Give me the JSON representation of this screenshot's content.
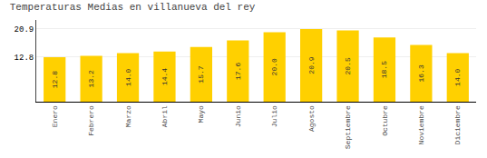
{
  "chart_data": {
    "type": "bar",
    "title": "Temperaturas Medias en villanueva del rey",
    "categories": [
      "Enero",
      "Febrero",
      "Marzo",
      "Abril",
      "Mayo",
      "Junio",
      "Julio",
      "Agosto",
      "Septiembre",
      "Octubre",
      "Noviembre",
      "Diciembre"
    ],
    "values": [
      12.8,
      13.2,
      14.0,
      14.4,
      15.7,
      17.6,
      20.0,
      20.9,
      20.5,
      18.5,
      16.3,
      14.0
    ],
    "value_labels": [
      "12.8",
      "13.2",
      "14.0",
      "14.4",
      "15.7",
      "17.6",
      "20.0",
      "20.9",
      "20.5",
      "18.5",
      "16.3",
      "14.0"
    ],
    "color": "#FFD000",
    "ylim": [
      0,
      23.5
    ],
    "yticks": [
      12.8,
      20.9
    ],
    "grid": true,
    "data_labels": true
  }
}
